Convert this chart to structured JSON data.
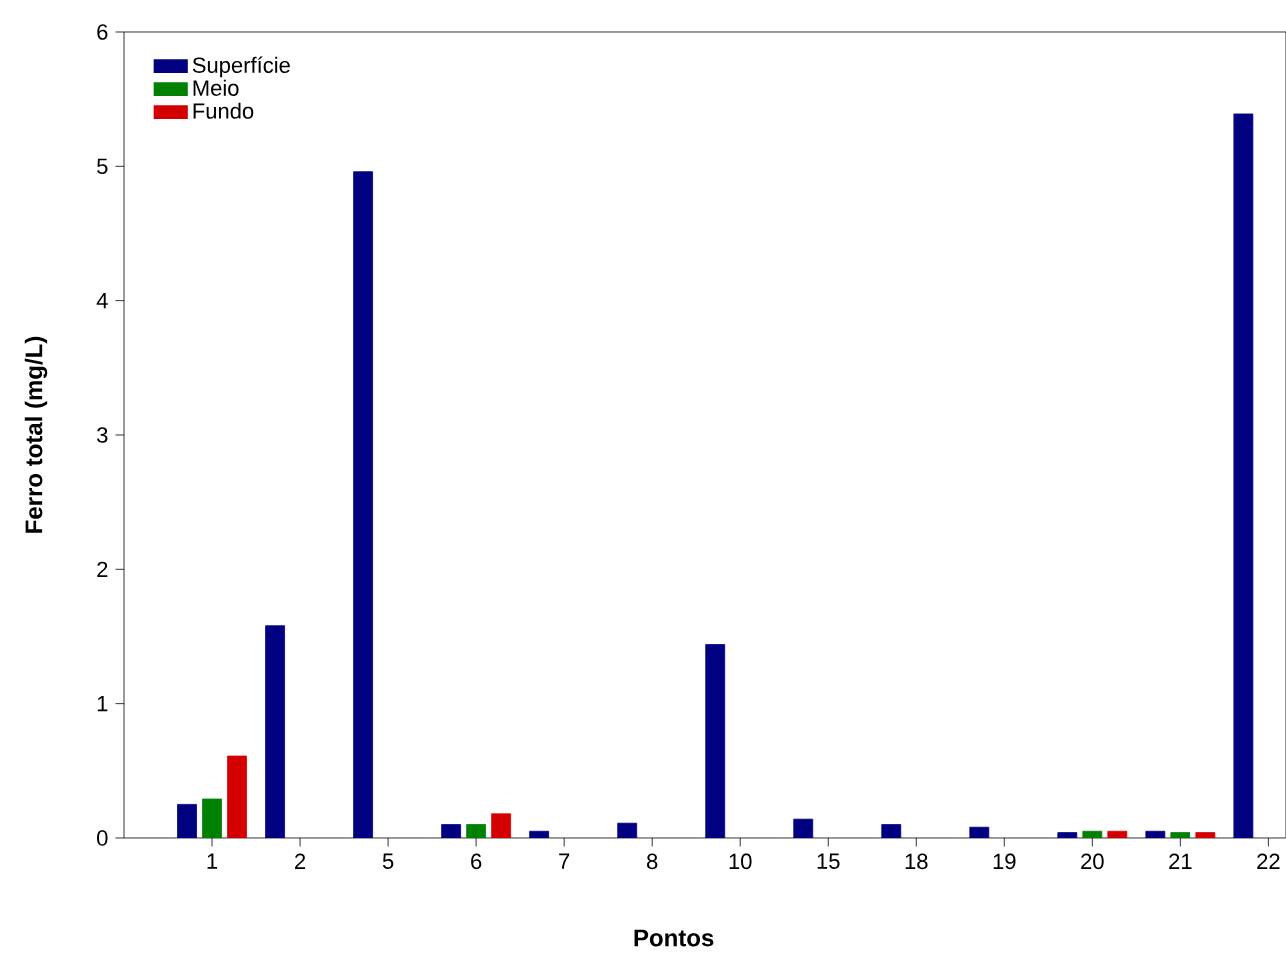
{
  "chart_data": {
    "type": "bar",
    "xlabel": "Pontos",
    "ylabel": "Ferro total (mg/L)",
    "categories": [
      "1",
      "2",
      "5",
      "6",
      "7",
      "8",
      "10",
      "15",
      "18",
      "19",
      "20",
      "21",
      "22"
    ],
    "series": [
      {
        "name": "Superfície",
        "color": "#000080",
        "values": [
          0.25,
          1.58,
          4.96,
          0.1,
          0.05,
          0.11,
          1.44,
          0.14,
          0.1,
          0.08,
          0.04,
          0.05,
          5.39
        ]
      },
      {
        "name": "Meio",
        "color": "#008000",
        "values": [
          0.29,
          null,
          null,
          0.1,
          null,
          null,
          null,
          null,
          null,
          null,
          0.05,
          0.04,
          null
        ]
      },
      {
        "name": "Fundo",
        "color": "#d40000",
        "values": [
          0.61,
          null,
          null,
          0.18,
          null,
          null,
          null,
          null,
          null,
          null,
          0.05,
          0.04,
          null
        ]
      }
    ],
    "ylim": [
      0,
      6
    ],
    "yticks": [
      0,
      1,
      2,
      3,
      4,
      5,
      6
    ],
    "legend": "top left"
  }
}
